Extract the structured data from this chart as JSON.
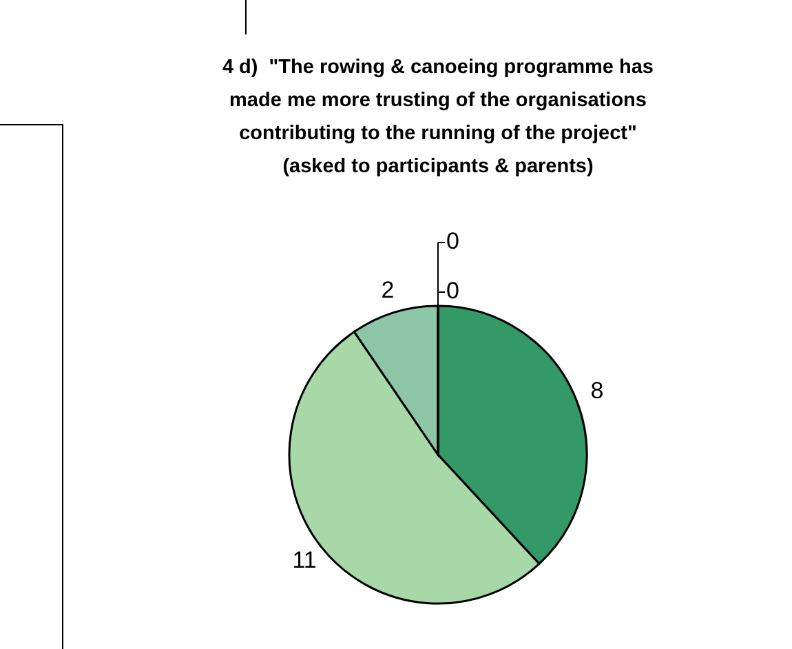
{
  "chart_data": {
    "type": "pie",
    "title": "4 d)  \"The rowing & canoeing programme has\nmade me more trusting of the organisations\ncontributing to the running of the project\"\n(asked to participants & parents)",
    "categories": [
      null,
      null,
      null,
      null,
      null
    ],
    "values": [
      8,
      11,
      2,
      0,
      0
    ],
    "colors": [
      "#339966",
      "#a8d8a8",
      "#8cc6a6",
      "#ffffff",
      "#ffffff"
    ],
    "value_labels": [
      "8",
      "11",
      "2",
      "0",
      "0"
    ]
  }
}
